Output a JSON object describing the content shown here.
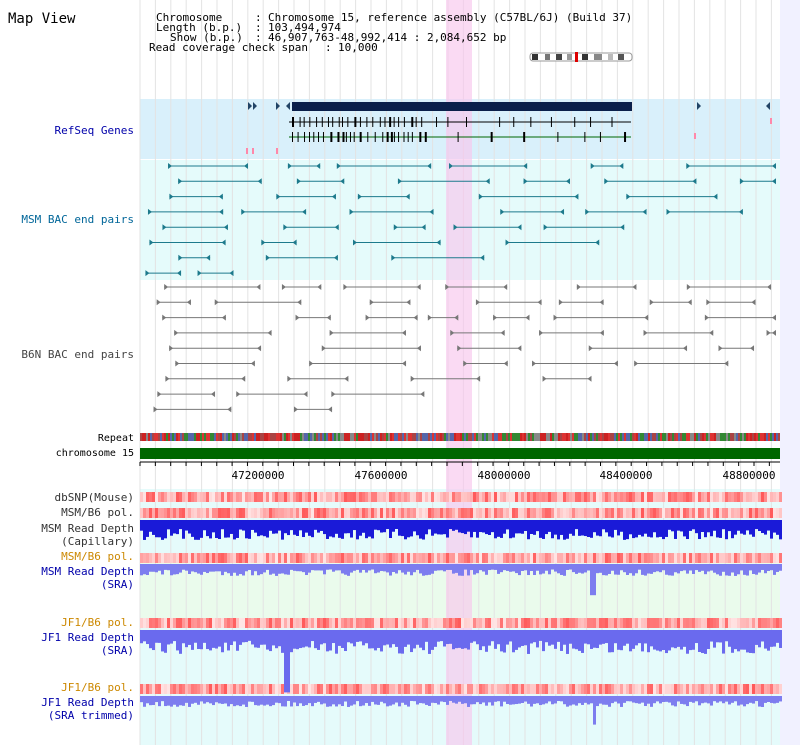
{
  "title": "Map View",
  "info": {
    "chromosome_key": "Chromosome",
    "chromosome_val": "Chromosome 15, reference assembly (C57BL/6J) (Build 37)",
    "length_key": "Length (b.p.)",
    "length_val": "103,494,974",
    "show_key": "Show (b.p.)",
    "show_val": "46,907,763-48,992,414 : 2,084,652 bp",
    "coverage_key": "Read coverage check span",
    "coverage_val": "10,000"
  },
  "tracks": {
    "refseq": "RefSeq Genes",
    "msm_bac": "MSM BAC end pairs",
    "b6n_bac": "B6N BAC end pairs",
    "repeat": "Repeat",
    "chromosome": "chromosome 15",
    "dbsnp": "dbSNP(Mouse)",
    "msm_b6_pol": "MSM/B6 pol.",
    "msm_depth_cap_1": "MSM Read Depth",
    "msm_depth_cap_2": "(Capillary)",
    "msm_b6_pol2": "MSM/B6 pol.",
    "msm_depth_sra_1": "MSM Read Depth",
    "msm_depth_sra_2": "(SRA)",
    "jf1_b6_pol": "JF1/B6 pol.",
    "jf1_depth_sra_1": "JF1 Read Depth",
    "jf1_depth_sra_2": "(SRA)",
    "jf1_b6_pol2": "JF1/B6 pol.",
    "jf1_depth_trim_1": "JF1 Read Depth",
    "jf1_depth_trim_2": "(SRA trimmed)"
  },
  "axis_ticks": [
    "47200000",
    "47600000",
    "48000000",
    "48400000",
    "48800000"
  ],
  "colors": {
    "refseq_bg": "#d9f0fb",
    "bac_bg": "#e5fbfb",
    "highlight": "#fbd8f1",
    "msm_label": "#006699",
    "blue_label": "#0000aa",
    "orange_label": "#cc8800",
    "chrom_green": "#006600",
    "depth_blue": "#0000dd",
    "depth_light": "#6666ee"
  }
}
